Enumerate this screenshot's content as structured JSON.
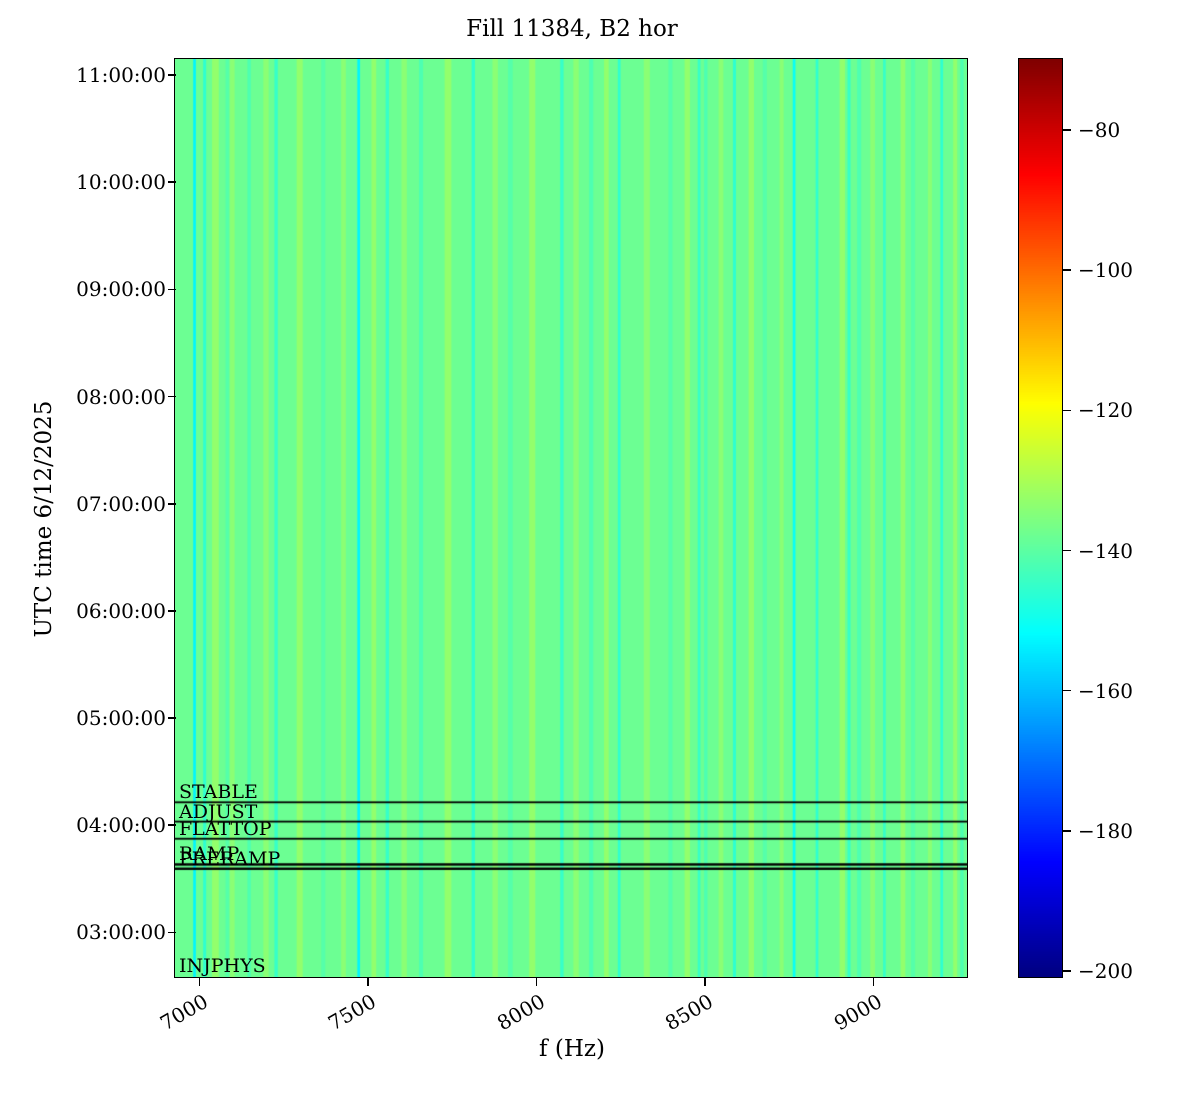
{
  "figure": {
    "title": "Fill 11384, B2 hor",
    "xlabel": "f (Hz)",
    "ylabel": "UTC time 6/12/2025"
  },
  "chart_data": {
    "type": "heatmap",
    "title": "Fill 11384, B2 hor",
    "xlabel": "f (Hz)",
    "ylabel": "UTC time 6/12/2025",
    "x_range": [
      6930,
      9280
    ],
    "x_ticks": [
      {
        "f": 7000,
        "label": "7000"
      },
      {
        "f": 7500,
        "label": "7500"
      },
      {
        "f": 8000,
        "label": "8000"
      },
      {
        "f": 8500,
        "label": "8500"
      },
      {
        "f": 9000,
        "label": "9000"
      }
    ],
    "y_range_hours": [
      2.575,
      11.14
    ],
    "y_ticks": [
      {
        "hour": 11,
        "label": "11:00:00"
      },
      {
        "hour": 10,
        "label": "10:00:00"
      },
      {
        "hour": 9,
        "label": "09:00:00"
      },
      {
        "hour": 8,
        "label": "08:00:00"
      },
      {
        "hour": 7,
        "label": "07:00:00"
      },
      {
        "hour": 6,
        "label": "06:00:00"
      },
      {
        "hour": 5,
        "label": "05:00:00"
      },
      {
        "hour": 4,
        "label": "04:00:00"
      },
      {
        "hour": 3,
        "label": "03:00:00"
      }
    ],
    "color_scale": {
      "colormap": "jet",
      "vmin": -201,
      "vmax": -70,
      "ticks": [
        {
          "value": -80,
          "label": "−80"
        },
        {
          "value": -100,
          "label": "−100"
        },
        {
          "value": -120,
          "label": "−120"
        },
        {
          "value": -140,
          "label": "−140"
        },
        {
          "value": -160,
          "label": "−160"
        },
        {
          "value": -180,
          "label": "−180"
        },
        {
          "value": -200,
          "label": "−200"
        }
      ]
    },
    "background_value": -138,
    "stripe_format": "[f_hz, width_hz, value]",
    "stripes": [
      [
        7050,
        20,
        -133
      ],
      [
        7100,
        14,
        -134
      ],
      [
        7200,
        16,
        -134
      ],
      [
        7300,
        18,
        -133
      ],
      [
        7430,
        14,
        -134
      ],
      [
        7520,
        14,
        -133
      ],
      [
        7610,
        16,
        -134
      ],
      [
        7740,
        20,
        -133
      ],
      [
        7880,
        16,
        -134
      ],
      [
        7990,
        18,
        -133
      ],
      [
        8120,
        16,
        -134
      ],
      [
        8210,
        14,
        -133
      ],
      [
        8330,
        18,
        -134
      ],
      [
        8450,
        16,
        -133
      ],
      [
        8550,
        14,
        -134
      ],
      [
        8640,
        16,
        -133
      ],
      [
        8730,
        12,
        -134
      ],
      [
        8910,
        16,
        -133
      ],
      [
        9000,
        14,
        -134
      ],
      [
        9090,
        14,
        -133
      ],
      [
        9170,
        12,
        -134
      ],
      [
        9245,
        12,
        -133
      ],
      [
        7085,
        10,
        -141
      ],
      [
        7150,
        10,
        -142
      ],
      [
        7370,
        12,
        -141
      ],
      [
        7660,
        12,
        -142
      ],
      [
        7925,
        14,
        -141
      ],
      [
        8165,
        12,
        -142
      ],
      [
        8400,
        12,
        -141
      ],
      [
        8505,
        10,
        -142
      ],
      [
        8680,
        12,
        -141
      ],
      [
        8960,
        12,
        -142
      ],
      [
        9120,
        12,
        -141
      ],
      [
        9265,
        10,
        -142
      ],
      [
        7018,
        9,
        -146
      ],
      [
        7230,
        10,
        -145
      ],
      [
        7560,
        10,
        -145
      ],
      [
        7815,
        10,
        -146
      ],
      [
        8078,
        10,
        -145
      ],
      [
        8248,
        8,
        -146
      ],
      [
        8485,
        8,
        -145
      ],
      [
        8590,
        9,
        -146
      ],
      [
        8835,
        8,
        -146
      ],
      [
        8930,
        9,
        -145
      ],
      [
        9035,
        8,
        -145
      ],
      [
        9205,
        8,
        -146
      ],
      [
        6988,
        8,
        -153
      ],
      [
        7475,
        8,
        -153
      ],
      [
        8767,
        8,
        -151
      ]
    ],
    "beam_modes": [
      {
        "label": "INJPHYS",
        "hour": 2.585,
        "line": false,
        "line_width": 0
      },
      {
        "label": "PRERAMP",
        "hour": 3.585,
        "line": true,
        "line_width": 2.4
      },
      {
        "label": "RAMP",
        "hour": 3.625,
        "line": true,
        "line_width": 2.4
      },
      {
        "label": "FLATTOP",
        "hour": 3.865,
        "line": true,
        "line_width": 1.8
      },
      {
        "label": "ADJUST",
        "hour": 4.025,
        "line": true,
        "line_width": 1.8
      },
      {
        "label": "STABLE",
        "hour": 4.205,
        "line": true,
        "line_width": 1.8
      }
    ]
  }
}
